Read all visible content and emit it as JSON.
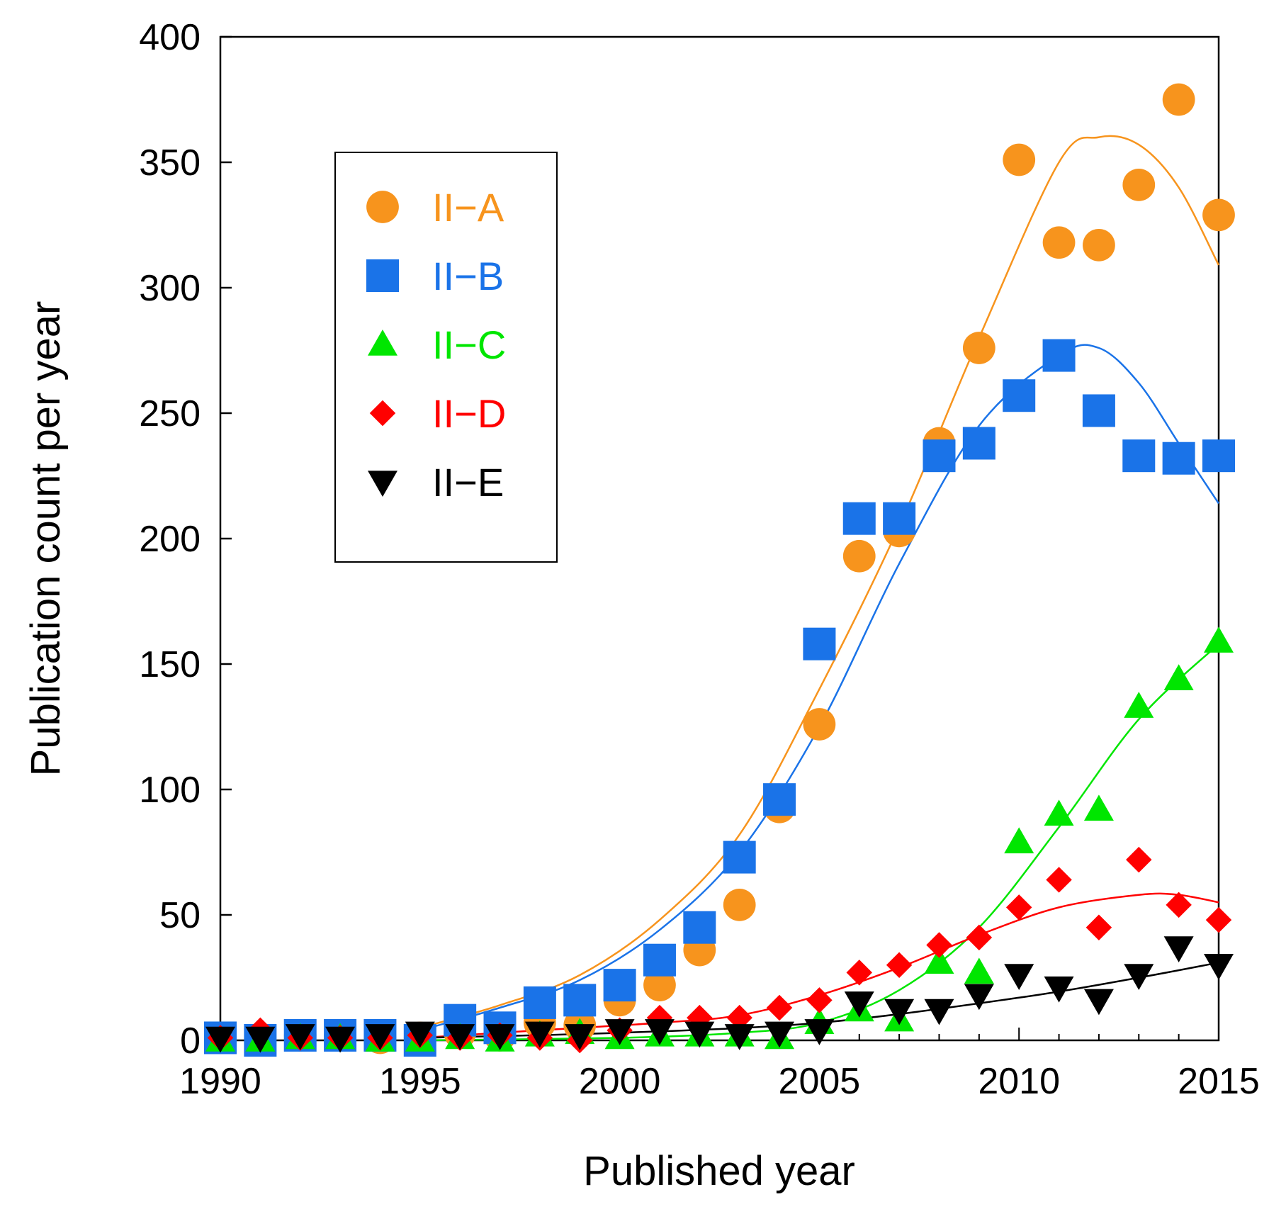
{
  "chart_data": {
    "type": "scatter",
    "title": "",
    "xlabel": "Published year",
    "ylabel": "Publication count per year",
    "xlim": [
      1990,
      2015
    ],
    "ylim": [
      0,
      400
    ],
    "x_ticks": [
      1990,
      1995,
      2000,
      2005,
      2010,
      2015
    ],
    "y_ticks": [
      0,
      50,
      100,
      150,
      200,
      250,
      300,
      350,
      400
    ],
    "legend_position": "top-left",
    "grid": false,
    "trend_lines": true,
    "x": [
      1990,
      1991,
      1992,
      1993,
      1994,
      1995,
      1996,
      1997,
      1998,
      1999,
      2000,
      2001,
      2002,
      2003,
      2004,
      2005,
      2006,
      2007,
      2008,
      2009,
      2010,
      2011,
      2012,
      2013,
      2014,
      2015
    ],
    "series": [
      {
        "name": "II−A",
        "color": "#f7941d",
        "marker": "circle",
        "values": [
          1,
          0,
          2,
          2,
          1,
          1,
          3,
          2,
          7,
          6,
          16,
          22,
          36,
          54,
          93,
          126,
          193,
          203,
          238,
          276,
          351,
          318,
          317,
          341,
          375,
          329
        ],
        "trend_x": [
          1995,
          1997,
          1999,
          2001,
          2003,
          2005,
          2007,
          2009,
          2011,
          2012,
          2013,
          2014,
          2015
        ],
        "trend": [
          5,
          14,
          26,
          48,
          82,
          140,
          205,
          280,
          350,
          360,
          357,
          340,
          309
        ]
      },
      {
        "name": "II−B",
        "color": "#1a73e8",
        "marker": "square",
        "values": [
          1,
          0,
          2,
          2,
          2,
          0,
          8,
          5,
          15,
          16,
          22,
          32,
          45,
          73,
          96,
          158,
          208,
          208,
          233,
          238,
          257,
          273,
          251,
          233,
          232,
          233
        ],
        "trend_x": [
          1995,
          1997,
          1999,
          2001,
          2003,
          2005,
          2007,
          2009,
          2011,
          2012,
          2013,
          2014,
          2015
        ],
        "trend": [
          4,
          13,
          24,
          44,
          75,
          125,
          190,
          245,
          273,
          276,
          262,
          238,
          214
        ]
      },
      {
        "name": "II−C",
        "color": "#00e600",
        "marker": "triangle-up",
        "values": [
          0,
          0,
          1,
          1,
          0,
          0,
          1,
          0,
          2,
          3,
          1,
          2,
          2,
          2,
          1,
          7,
          12,
          8,
          31,
          27,
          79,
          90,
          92,
          133,
          144,
          159
        ],
        "trend_x": [
          1995,
          2000,
          2003,
          2005,
          2007,
          2009,
          2011,
          2013,
          2015
        ],
        "trend": [
          0,
          1,
          3,
          7,
          20,
          45,
          85,
          128,
          158
        ]
      },
      {
        "name": "II−D",
        "color": "#ff0000",
        "marker": "diamond",
        "values": [
          1,
          4,
          1,
          1,
          1,
          2,
          1,
          2,
          1,
          0,
          4,
          9,
          9,
          9,
          13,
          16,
          27,
          30,
          38,
          41,
          53,
          64,
          45,
          72,
          54,
          48
        ],
        "trend_x": [
          1995,
          1998,
          2001,
          2003,
          2005,
          2007,
          2009,
          2011,
          2013,
          2014,
          2015
        ],
        "trend": [
          1,
          4,
          7,
          10,
          18,
          29,
          42,
          53,
          58,
          58,
          55
        ]
      },
      {
        "name": "II−E",
        "color": "#000000",
        "marker": "triangle-down",
        "values": [
          1,
          1,
          2,
          1,
          2,
          3,
          2,
          2,
          3,
          2,
          4,
          4,
          3,
          2,
          3,
          4,
          15,
          12,
          12,
          18,
          26,
          21,
          16,
          26,
          37,
          30
        ],
        "trend_x": [
          1995,
          2000,
          2005,
          2010,
          2013,
          2015
        ],
        "trend": [
          1,
          3,
          7,
          17,
          25,
          31
        ]
      }
    ]
  }
}
